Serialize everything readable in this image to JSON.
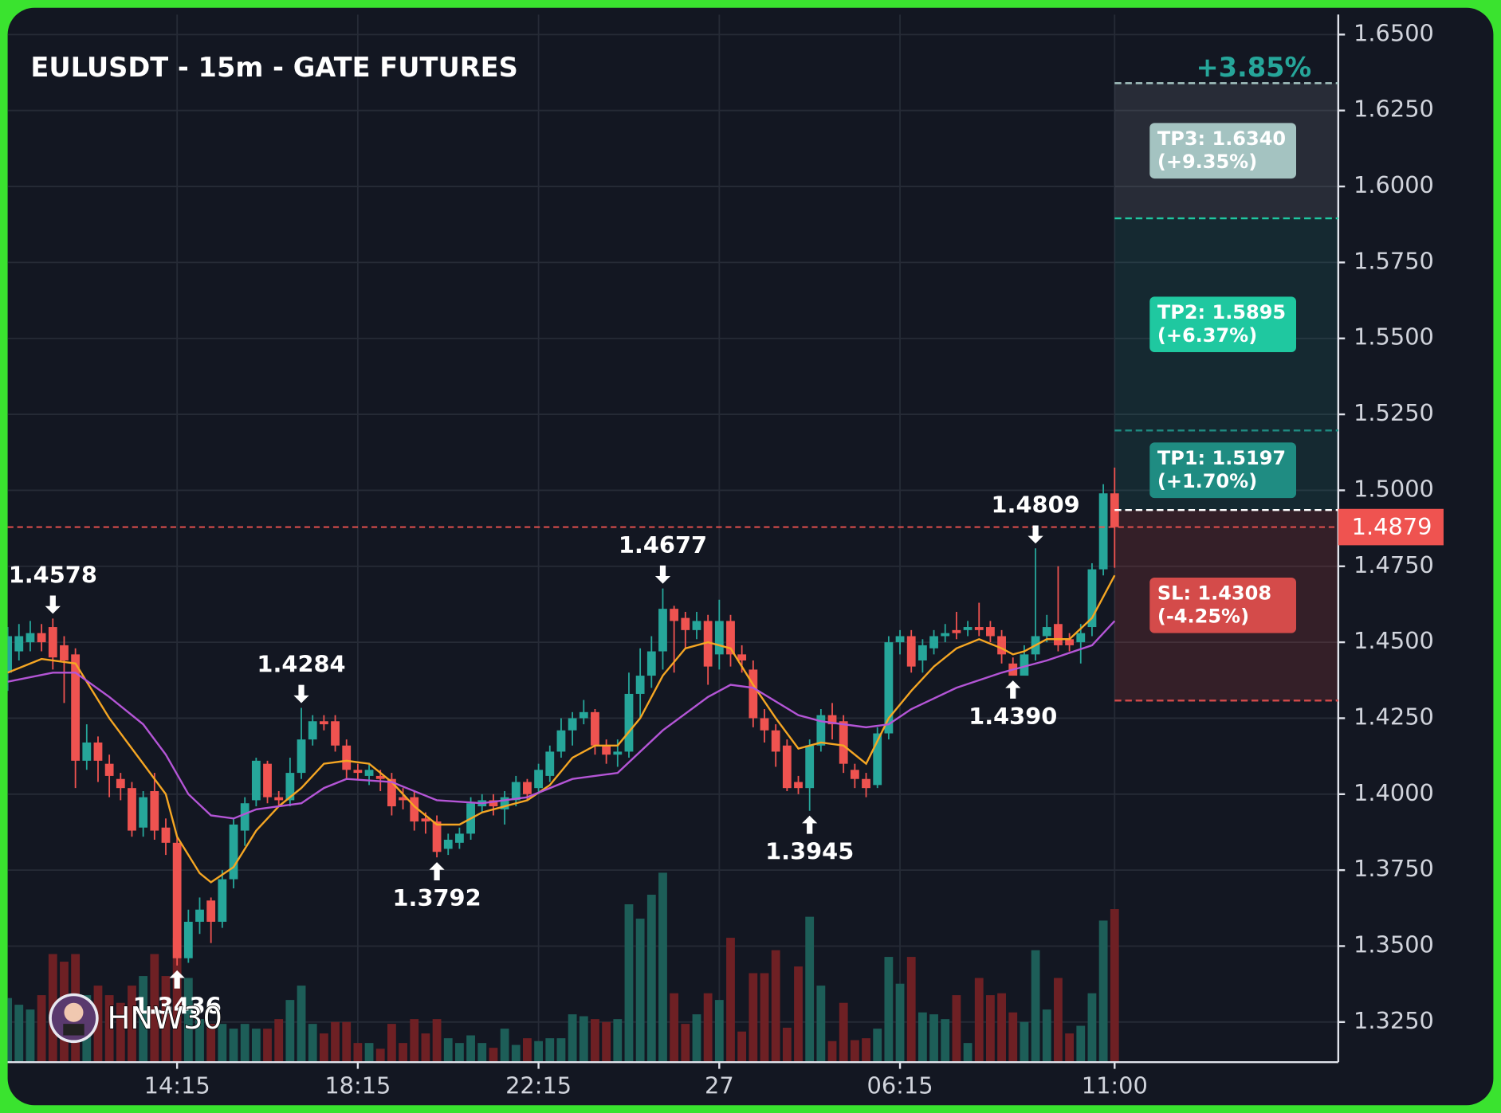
{
  "chart_data": {
    "type": "candlestick",
    "title": "EULUSDT - 15m - GATE FUTURES",
    "change_label": "+3.85%",
    "watermark": "HNW30",
    "up_color": "#26a69a",
    "down_color": "#ef5350",
    "grid": true,
    "xlim": [
      0,
      117.8
    ],
    "ylim": [
      1.3118,
      1.6566
    ],
    "xticks": [
      {
        "value": 15,
        "label": "14:15"
      },
      {
        "value": 31,
        "label": "18:15"
      },
      {
        "value": 47,
        "label": "22:15"
      },
      {
        "value": 63,
        "label": "27"
      },
      {
        "value": 79,
        "label": "06:15"
      },
      {
        "value": 98,
        "label": "11:00"
      }
    ],
    "yticks": [
      {
        "value": 1.325,
        "label": "1.3250"
      },
      {
        "value": 1.35,
        "label": "1.3500"
      },
      {
        "value": 1.375,
        "label": "1.3750"
      },
      {
        "value": 1.4,
        "label": "1.4000"
      },
      {
        "value": 1.425,
        "label": "1.4250"
      },
      {
        "value": 1.45,
        "label": "1.4500"
      },
      {
        "value": 1.475,
        "label": "1.4750"
      },
      {
        "value": 1.5,
        "label": "1.5000"
      },
      {
        "value": 1.525,
        "label": "1.5250"
      },
      {
        "value": 1.55,
        "label": "1.5500"
      },
      {
        "value": 1.575,
        "label": "1.5750"
      },
      {
        "value": 1.6,
        "label": "1.6000"
      },
      {
        "value": 1.625,
        "label": "1.6250"
      },
      {
        "value": 1.65,
        "label": "1.6500"
      }
    ],
    "open": [
      1.44,
      1.447,
      1.45,
      1.453,
      1.455,
      1.449,
      1.446,
      1.411,
      1.417,
      1.41,
      1.405,
      1.402,
      1.389,
      1.401,
      1.389,
      1.384,
      1.346,
      1.358,
      1.365,
      1.358,
      1.372,
      1.388,
      1.398,
      1.41,
      1.399,
      1.398,
      1.407,
      1.418,
      1.424,
      1.424,
      1.416,
      1.408,
      1.406,
      1.406,
      1.405,
      1.399,
      1.399,
      1.392,
      1.391,
      1.382,
      1.384,
      1.387,
      1.396,
      1.398,
      1.395,
      1.398,
      1.404,
      1.402,
      1.406,
      1.414,
      1.421,
      1.425,
      1.427,
      1.416,
      1.413,
      1.414,
      1.433,
      1.439,
      1.447,
      1.461,
      1.458,
      1.454,
      1.457,
      1.446,
      1.457,
      1.446,
      1.441,
      1.425,
      1.421,
      1.416,
      1.404,
      1.402,
      1.416,
      1.426,
      1.424,
      1.408,
      1.405,
      1.403,
      1.42,
      1.45,
      1.452,
      1.444,
      1.448,
      1.452,
      1.454,
      1.454,
      1.455,
      1.455,
      1.452,
      1.443,
      1.439,
      1.446,
      1.452,
      1.456,
      1.451,
      1.45,
      1.455,
      1.474,
      1.499
    ],
    "high": [
      1.455,
      1.456,
      1.457,
      1.456,
      1.4578,
      1.452,
      1.448,
      1.423,
      1.419,
      1.413,
      1.407,
      1.404,
      1.401,
      1.407,
      1.392,
      1.386,
      1.362,
      1.366,
      1.366,
      1.375,
      1.392,
      1.399,
      1.412,
      1.411,
      1.401,
      1.412,
      1.4284,
      1.426,
      1.426,
      1.426,
      1.418,
      1.41,
      1.41,
      1.408,
      1.407,
      1.402,
      1.401,
      1.394,
      1.393,
      1.387,
      1.389,
      1.399,
      1.4,
      1.4,
      1.401,
      1.406,
      1.405,
      1.41,
      1.416,
      1.425,
      1.427,
      1.431,
      1.428,
      1.418,
      1.418,
      1.44,
      1.448,
      1.452,
      1.4677,
      1.462,
      1.46,
      1.46,
      1.459,
      1.464,
      1.459,
      1.449,
      1.444,
      1.428,
      1.423,
      1.418,
      1.406,
      1.418,
      1.428,
      1.43,
      1.426,
      1.41,
      1.407,
      1.422,
      1.452,
      1.454,
      1.454,
      1.451,
      1.454,
      1.456,
      1.46,
      1.457,
      1.463,
      1.457,
      1.454,
      1.445,
      1.449,
      1.4809,
      1.459,
      1.475,
      1.453,
      1.456,
      1.476,
      1.502,
      1.5075
    ],
    "low": [
      1.434,
      1.444,
      1.447,
      1.447,
      1.441,
      1.43,
      1.402,
      1.408,
      1.404,
      1.399,
      1.398,
      1.386,
      1.386,
      1.385,
      1.38,
      1.3436,
      1.3445,
      1.354,
      1.351,
      1.356,
      1.369,
      1.383,
      1.396,
      1.397,
      1.396,
      1.396,
      1.405,
      1.416,
      1.421,
      1.414,
      1.405,
      1.405,
      1.403,
      1.401,
      1.393,
      1.395,
      1.388,
      1.387,
      1.3792,
      1.38,
      1.382,
      1.385,
      1.394,
      1.393,
      1.39,
      1.396,
      1.398,
      1.4,
      1.404,
      1.412,
      1.416,
      1.423,
      1.413,
      1.41,
      1.409,
      1.412,
      1.425,
      1.435,
      1.441,
      1.44,
      1.448,
      1.451,
      1.436,
      1.441,
      1.442,
      1.44,
      1.422,
      1.417,
      1.409,
      1.401,
      1.4,
      1.3945,
      1.414,
      1.418,
      1.407,
      1.402,
      1.399,
      1.402,
      1.418,
      1.446,
      1.44,
      1.44,
      1.446,
      1.45,
      1.451,
      1.452,
      1.452,
      1.45,
      1.443,
      1.439,
      1.44,
      1.444,
      1.45,
      1.447,
      1.447,
      1.443,
      1.452,
      1.472,
      1.4745
    ],
    "close": [
      1.452,
      1.452,
      1.453,
      1.45,
      1.445,
      1.444,
      1.411,
      1.417,
      1.411,
      1.406,
      1.402,
      1.388,
      1.399,
      1.388,
      1.384,
      1.346,
      1.358,
      1.362,
      1.358,
      1.372,
      1.39,
      1.397,
      1.411,
      1.399,
      1.398,
      1.407,
      1.418,
      1.424,
      1.423,
      1.416,
      1.408,
      1.407,
      1.408,
      1.405,
      1.396,
      1.398,
      1.391,
      1.391,
      1.381,
      1.385,
      1.387,
      1.397,
      1.398,
      1.396,
      1.399,
      1.404,
      1.4,
      1.408,
      1.414,
      1.421,
      1.425,
      1.427,
      1.416,
      1.413,
      1.414,
      1.433,
      1.439,
      1.447,
      1.461,
      1.457,
      1.454,
      1.457,
      1.442,
      1.457,
      1.446,
      1.444,
      1.425,
      1.421,
      1.414,
      1.402,
      1.402,
      1.416,
      1.426,
      1.423,
      1.41,
      1.405,
      1.402,
      1.42,
      1.45,
      1.452,
      1.442,
      1.449,
      1.452,
      1.453,
      1.453,
      1.455,
      1.454,
      1.452,
      1.446,
      1.439,
      1.446,
      1.452,
      1.455,
      1.449,
      1.449,
      1.453,
      1.474,
      1.499,
      1.4879
    ],
    "volume": [
      67,
      60,
      55,
      70,
      113,
      105,
      113,
      70,
      80,
      70,
      62,
      80,
      90,
      113,
      90,
      130,
      88,
      45,
      40,
      40,
      35,
      40,
      35,
      35,
      45,
      65,
      80,
      40,
      30,
      42,
      42,
      20,
      20,
      14,
      40,
      20,
      45,
      30,
      45,
      25,
      20,
      28,
      20,
      15,
      35,
      18,
      25,
      22,
      25,
      25,
      50,
      48,
      45,
      42,
      45,
      165,
      150,
      175,
      198,
      72,
      40,
      50,
      72,
      65,
      130,
      32,
      93,
      93,
      117,
      36,
      100,
      152,
      80,
      22,
      62,
      23,
      25,
      35,
      110,
      82,
      110,
      52,
      50,
      45,
      70,
      20,
      88,
      70,
      72,
      52,
      42,
      117,
      55,
      88,
      30,
      38,
      72,
      148,
      160
    ],
    "overlays": [
      {
        "color": "#f5a623",
        "x": [
          0,
          3,
          6,
          9,
          12,
          14,
          15,
          17,
          18,
          20,
          22,
          24,
          26,
          28,
          30,
          32,
          34,
          36,
          38,
          40,
          42,
          44,
          46,
          48,
          50,
          52,
          54,
          56,
          58,
          60,
          62,
          64,
          66,
          68,
          70,
          72,
          74,
          76,
          78,
          80,
          82,
          84,
          86,
          88,
          89,
          90,
          92,
          94,
          96,
          98
        ],
        "values": [
          1.44,
          1.4445,
          1.443,
          1.425,
          1.41,
          1.4,
          1.386,
          1.374,
          1.371,
          1.376,
          1.388,
          1.396,
          1.402,
          1.41,
          1.411,
          1.41,
          1.404,
          1.396,
          1.39,
          1.39,
          1.394,
          1.396,
          1.398,
          1.403,
          1.412,
          1.416,
          1.416,
          1.425,
          1.439,
          1.448,
          1.45,
          1.448,
          1.436,
          1.425,
          1.415,
          1.417,
          1.416,
          1.41,
          1.425,
          1.434,
          1.442,
          1.448,
          1.451,
          1.448,
          1.446,
          1.447,
          1.451,
          1.451,
          1.458,
          1.472
        ]
      },
      {
        "color": "#b455d6",
        "x": [
          0,
          4,
          6,
          9,
          12,
          14,
          16,
          18,
          20,
          22,
          26,
          28,
          30,
          34,
          38,
          42,
          46,
          50,
          54,
          58,
          62,
          64,
          66,
          70,
          72,
          76,
          78,
          80,
          84,
          88,
          92,
          96,
          98
        ],
        "values": [
          1.437,
          1.44,
          1.44,
          1.432,
          1.423,
          1.413,
          1.4,
          1.393,
          1.392,
          1.395,
          1.397,
          1.402,
          1.405,
          1.404,
          1.398,
          1.397,
          1.399,
          1.405,
          1.407,
          1.421,
          1.432,
          1.436,
          1.435,
          1.426,
          1.424,
          1.422,
          1.423,
          1.428,
          1.435,
          1.44,
          1.444,
          1.449,
          1.457
        ]
      }
    ],
    "entry": 1.4935,
    "last_price": {
      "value": 1.4879,
      "label": "1.4879"
    },
    "levels": [
      {
        "label": "TP3: 1.6340",
        "value": 1.634,
        "change": "(+9.35%)",
        "color": "#a4c3c1"
      },
      {
        "label": "TP2: 1.5895",
        "value": 1.5895,
        "change": "(+6.37%)",
        "color": "#1fc8a0"
      },
      {
        "label": "TP1: 1.5197",
        "value": 1.5197,
        "change": "(+1.70%)",
        "color": "#1f8c82"
      },
      {
        "label": "SL: 1.4308",
        "value": 1.4308,
        "change": "(-4.25%)",
        "color": "#d44b4a"
      }
    ],
    "annotations": [
      {
        "x": 4,
        "value": 1.4578,
        "label": "1.4578",
        "position": "above"
      },
      {
        "x": 15,
        "value": 1.3436,
        "label": "1.3436",
        "position": "below"
      },
      {
        "x": 26,
        "value": 1.4284,
        "label": "1.4284",
        "position": "above"
      },
      {
        "x": 38,
        "value": 1.3792,
        "label": "1.3792",
        "position": "below"
      },
      {
        "x": 58,
        "value": 1.4677,
        "label": "1.4677",
        "position": "above"
      },
      {
        "x": 71,
        "value": 1.3945,
        "label": "1.3945",
        "position": "below"
      },
      {
        "x": 89,
        "value": 1.439,
        "label": "1.4390",
        "position": "below"
      },
      {
        "x": 91,
        "value": 1.4809,
        "label": "1.4809",
        "position": "above"
      }
    ]
  }
}
